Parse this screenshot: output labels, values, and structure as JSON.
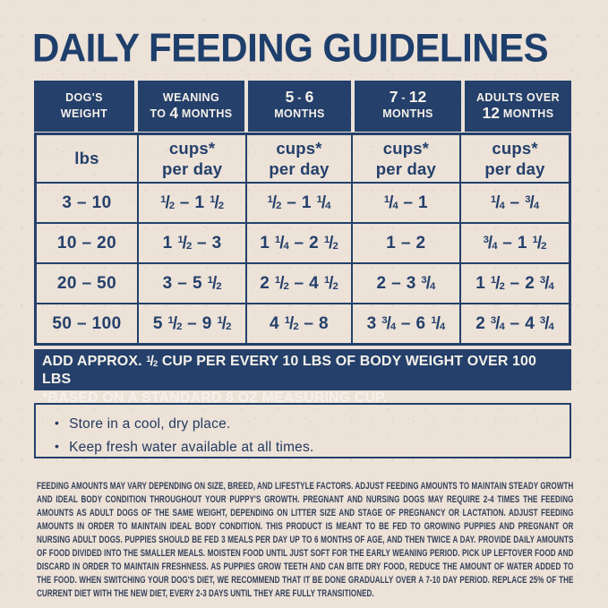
{
  "title": "DAILY FEEDING GUIDELINES",
  "colors": {
    "navy": "#24406b",
    "cream": "#ece2d8",
    "header_text": "#f6f1ea",
    "fine_print_text": "#344059"
  },
  "icons": {
    "bullet": "•"
  },
  "table": {
    "headers": [
      {
        "line1": "DOG'S",
        "line2": "WEIGHT"
      },
      {
        "line1": "WEANING",
        "line2": "TO 4 MONTHS"
      },
      {
        "line1": "5 - 6",
        "line2": "MONTHS"
      },
      {
        "line1": "7 - 12",
        "line2": "MONTHS"
      },
      {
        "line1": "ADULTS OVER",
        "line2": "12 MONTHS"
      }
    ],
    "units_row": {
      "weight_unit": "lbs",
      "cups_line1": "cups*",
      "cups_line2": "per day"
    },
    "rows": [
      {
        "weight": "3 – 10",
        "cells": [
          "1/2 – 1 1/2",
          "1/2 – 1 1/4",
          "1/4 – 1",
          "1/4 – 3/4"
        ]
      },
      {
        "weight": "10 – 20",
        "cells": [
          "1 1/2 – 3",
          "1 1/4 – 2 1/2",
          "1 – 2",
          "3/4 – 1 1/2"
        ]
      },
      {
        "weight": "20 – 50",
        "cells": [
          "3 – 5 1/2",
          "2 1/2 – 4 1/2",
          "2 – 3 3/4",
          "1 1/2 – 2 3/4"
        ]
      },
      {
        "weight": "50 – 100",
        "cells": [
          "5 1/2 – 9 1/2",
          "4 1/2 – 8",
          "3 3/4 – 6 1/4",
          "2 3/4 – 4 3/4"
        ]
      }
    ],
    "footnote_line1": "ADD APPROX. 1/2 CUP PER EVERY 10 LBS OF BODY WEIGHT OVER 100 LBS",
    "footnote_line2": "*BASED ON A STANDARD 8 OZ MEASURING CUP."
  },
  "tips": [
    "Store in a cool, dry place.",
    "Keep fresh water available at all times."
  ],
  "fine_print": "FEEDING AMOUNTS MAY VARY DEPENDING ON SIZE, BREED, AND LIFESTYLE FACTORS. ADJUST FEEDING AMOUNTS TO MAINTAIN STEADY GROWTH AND IDEAL BODY CONDITION THROUGHOUT YOUR PUPPY'S GROWTH. PREGNANT AND NURSING DOGS MAY REQUIRE 2-4 TIMES THE FEEDING AMOUNTS AS ADULT DOGS OF THE SAME WEIGHT, DEPENDING ON LITTER SIZE AND STAGE OF PREGNANCY OR LACTATION. ADJUST FEEDING AMOUNTS IN ORDER TO MAINTAIN IDEAL BODY CONDITION. THIS PRODUCT IS MEANT TO BE FED TO GROWING PUPPIES AND PREGNANT OR NURSING ADULT DOGS. PUPPIES SHOULD BE FED 3 MEALS PER DAY UP TO 6 MONTHS OF AGE, AND THEN TWICE A DAY. PROVIDE DAILY AMOUNTS OF FOOD DIVIDED INTO THE SMALLER MEALS. MOISTEN FOOD UNTIL JUST SOFT FOR THE EARLY WEANING PERIOD. PICK UP LEFTOVER FOOD AND DISCARD IN ORDER TO MAINTAIN FRESHNESS. AS PUPPIES GROW TEETH AND CAN BITE DRY FOOD, REDUCE THE AMOUNT OF WATER ADDED TO THE FOOD. WHEN SWITCHING YOUR DOG'S DIET, WE RECOMMEND THAT IT BE DONE GRADUALLY OVER A 7-10 DAY PERIOD. REPLACE 25% OF THE CURRENT DIET WITH THE NEW DIET, EVERY 2-3 DAYS UNTIL THEY ARE FULLY TRANSITIONED."
}
